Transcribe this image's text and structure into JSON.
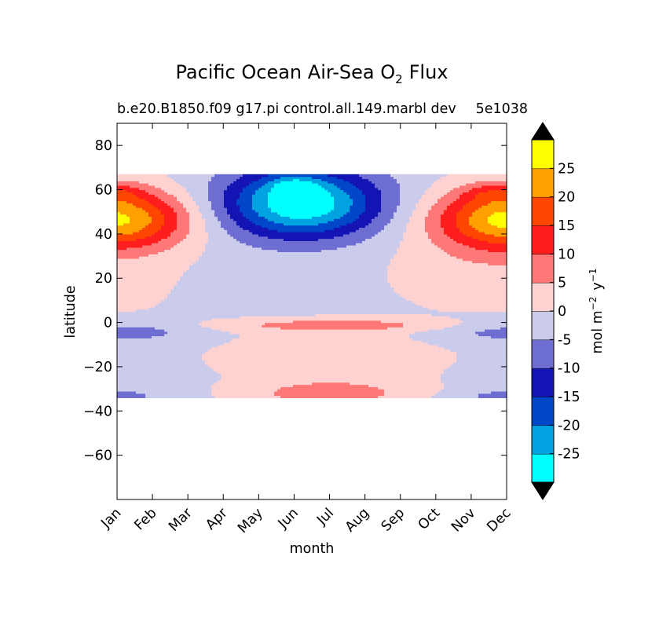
{
  "chart_data": {
    "type": "contour",
    "title": "Pacific Ocean Air-Sea O",
    "title_subscript": "2",
    "title_suffix": "Flux",
    "subtitle_left": "b.e20.B1850.f09 g17.pi control.all.149.marbl dev",
    "subtitle_right": "5e1038",
    "xlabel": "month",
    "ylabel": "latitude",
    "x_categories": [
      "Jan",
      "Feb",
      "Mar",
      "Apr",
      "May",
      "Jun",
      "Jul",
      "Aug",
      "Sep",
      "Oct",
      "Nov",
      "Dec"
    ],
    "ylim": [
      -80,
      90
    ],
    "yticks": [
      -60,
      -40,
      -20,
      0,
      20,
      40,
      60,
      80
    ],
    "ytick_labels": [
      "−60",
      "−40",
      "−20",
      "0",
      "20",
      "40",
      "60",
      "80"
    ],
    "data_lat_range": [
      -34,
      67
    ],
    "colorbar": {
      "label_base": "mol m",
      "label_exp1": "−2",
      "label_mid": "y",
      "label_exp2": "−1",
      "levels": [
        -30,
        -25,
        -20,
        -15,
        -10,
        -5,
        0,
        5,
        10,
        15,
        20,
        25,
        30
      ],
      "tick_values": [
        -25,
        -20,
        -15,
        -10,
        -5,
        0,
        5,
        10,
        15,
        20,
        25
      ],
      "tick_labels": [
        "-25",
        "-20",
        "-15",
        "-10",
        "-5",
        "0",
        "5",
        "10",
        "15",
        "20",
        "25"
      ],
      "colors": [
        "#00ffff",
        "#00a3e0",
        "#0046c8",
        "#1414b4",
        "#6e6ed2",
        "#cbcbec",
        "#ffd2d2",
        "#ff7878",
        "#ff1e1e",
        "#ff4600",
        "#ffa000",
        "#ffff00"
      ],
      "extend": "both",
      "extend_color": "#000000"
    },
    "features": [
      {
        "name": "northern-pacific-uptake-winter",
        "months": [
          "Jan",
          "Feb",
          "Mar",
          "Nov",
          "Dec"
        ],
        "lat_range": [
          30,
          63
        ],
        "max_value": 25
      },
      {
        "name": "northern-pacific-outgassing-summer",
        "months": [
          "May",
          "Jun",
          "Jul",
          "Aug"
        ],
        "lat_range": [
          30,
          67
        ],
        "min_value": -30
      },
      {
        "name": "equatorial-outgassing",
        "months": [
          "Jun",
          "Jul",
          "Aug"
        ],
        "lat_range": [
          -2,
          0
        ],
        "value": 5
      },
      {
        "name": "southern-subtropics-positive",
        "months": [
          "Jun",
          "Jul",
          "Aug"
        ],
        "lat_range": [
          -34,
          -25
        ],
        "value": 5
      }
    ]
  }
}
